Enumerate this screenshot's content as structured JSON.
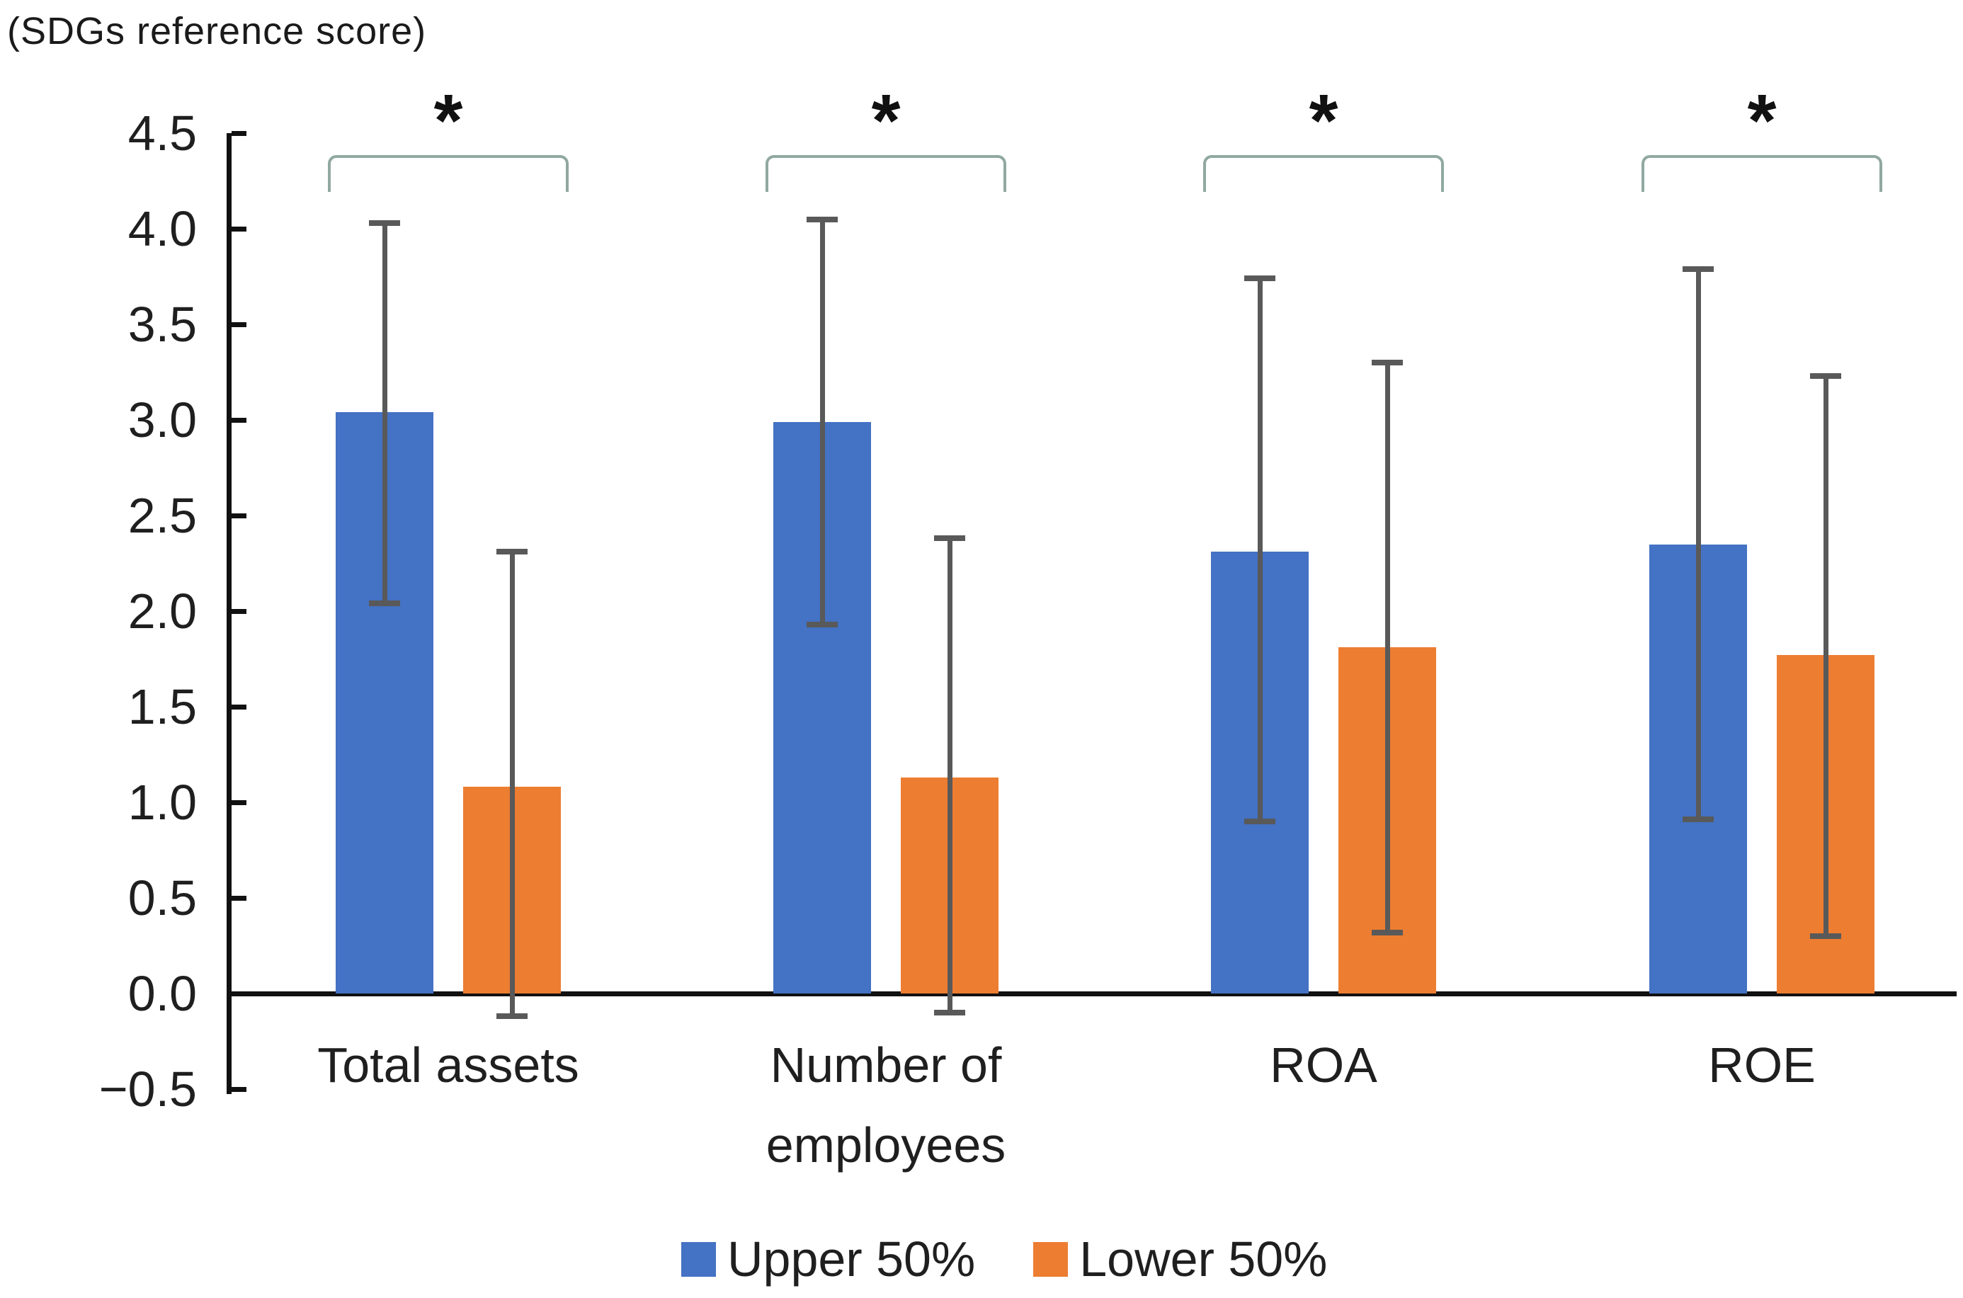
{
  "title": "(SDGs reference score)",
  "chart_data": {
    "type": "bar",
    "title": "(SDGs reference score)",
    "categories": [
      "Total assets",
      "Number of employees",
      "ROA",
      "ROE"
    ],
    "category_lines": [
      [
        "Total assets"
      ],
      [
        "Number of",
        "employees"
      ],
      [
        "ROA"
      ],
      [
        "ROE"
      ]
    ],
    "series": [
      {
        "name": "Upper 50%",
        "color": "#4472C4",
        "values": [
          3.04,
          2.99,
          2.31,
          2.35
        ],
        "error_low": [
          2.04,
          1.93,
          0.9,
          0.91
        ],
        "error_high": [
          4.03,
          4.05,
          3.74,
          3.79
        ]
      },
      {
        "name": "Lower 50%",
        "color": "#ED7D31",
        "values": [
          1.08,
          1.13,
          1.81,
          1.77
        ],
        "error_low": [
          -0.12,
          -0.1,
          0.32,
          0.3
        ],
        "error_high": [
          2.31,
          2.38,
          3.3,
          3.23
        ]
      }
    ],
    "significance_markers": [
      "*",
      "*",
      "*",
      "*"
    ],
    "yticks": [
      {
        "label": "4.5",
        "value": 4.5
      },
      {
        "label": "4.0",
        "value": 4.0
      },
      {
        "label": "3.5",
        "value": 3.5
      },
      {
        "label": "3.0",
        "value": 3.0
      },
      {
        "label": "2.5",
        "value": 2.5
      },
      {
        "label": "2.0",
        "value": 2.0
      },
      {
        "label": "1.5",
        "value": 1.5
      },
      {
        "label": "1.0",
        "value": 1.0
      },
      {
        "label": "0.5",
        "value": 0.5
      },
      {
        "label": "0.0",
        "value": 0.0
      },
      {
        "label": "−0.5",
        "value": -0.5
      }
    ],
    "ylim": [
      -0.5,
      4.5
    ],
    "grid": false,
    "legend_position": "bottom",
    "error_bar_color": "#595959",
    "bracket_color": "#90A8A1"
  }
}
